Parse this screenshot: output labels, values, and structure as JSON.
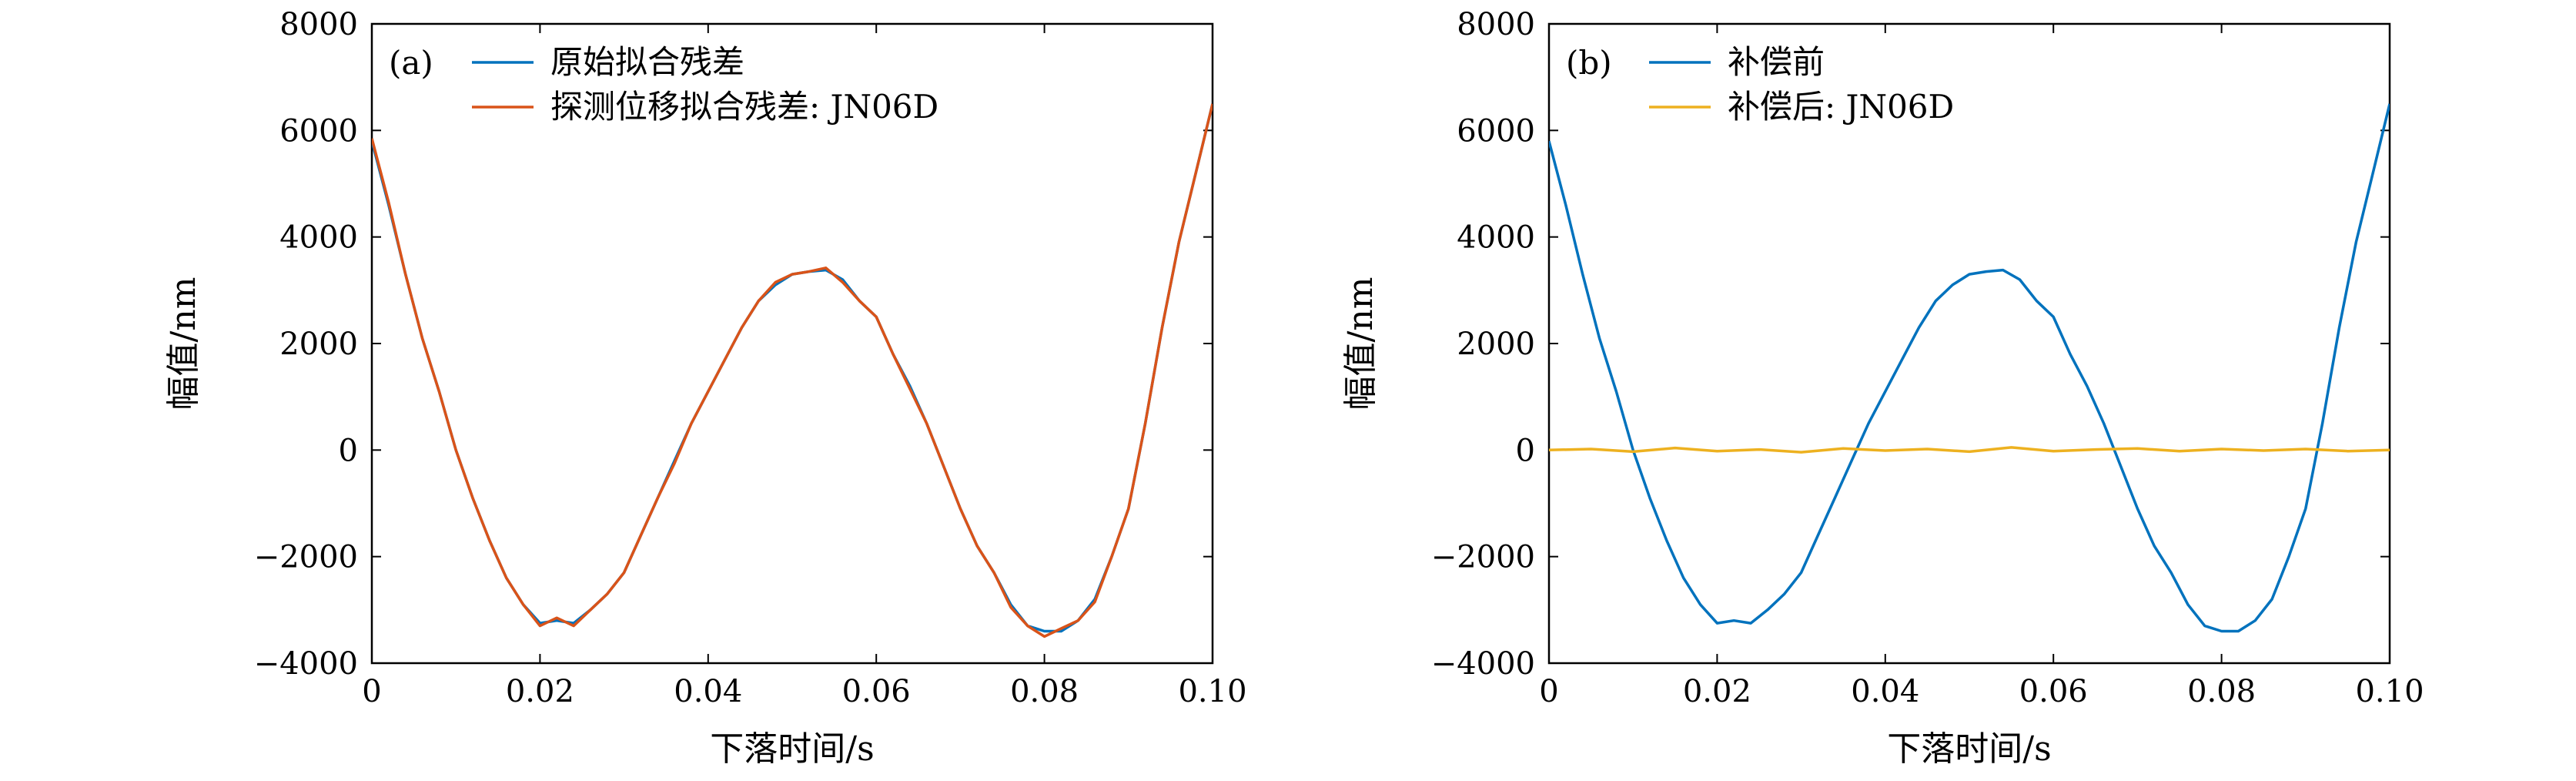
{
  "chart_data": [
    {
      "type": "line",
      "panel_label": "(a)",
      "xlabel": "下落时间/s",
      "ylabel": "幅值/nm",
      "xlim": [
        0,
        0.1
      ],
      "ylim": [
        -4000,
        8000
      ],
      "xticks": [
        0,
        0.02,
        0.04,
        0.06,
        0.08,
        0.1
      ],
      "xtick_labels": [
        "0",
        "0.02",
        "0.04",
        "0.06",
        "0.08",
        "0.10"
      ],
      "yticks": [
        -4000,
        -2000,
        0,
        2000,
        4000,
        6000,
        8000
      ],
      "ytick_labels": [
        "−4000",
        "−2000",
        "0",
        "2000",
        "4000",
        "6000",
        "8000"
      ],
      "legend_position": "top-left",
      "series": [
        {
          "name": "原始拟合残差",
          "color": "#0072BD",
          "x": [
            0,
            0.002,
            0.004,
            0.006,
            0.008,
            0.01,
            0.012,
            0.014,
            0.016,
            0.018,
            0.02,
            0.022,
            0.024,
            0.026,
            0.028,
            0.03,
            0.032,
            0.034,
            0.036,
            0.038,
            0.04,
            0.042,
            0.044,
            0.046,
            0.048,
            0.05,
            0.052,
            0.054,
            0.056,
            0.058,
            0.06,
            0.062,
            0.064,
            0.066,
            0.068,
            0.07,
            0.072,
            0.074,
            0.076,
            0.078,
            0.08,
            0.082,
            0.084,
            0.086,
            0.088,
            0.09,
            0.092,
            0.094,
            0.096,
            0.098,
            0.1
          ],
          "y": [
            5800,
            4600,
            3300,
            2100,
            1100,
            0,
            -900,
            -1700,
            -2400,
            -2900,
            -3250,
            -3200,
            -3250,
            -3000,
            -2700,
            -2300,
            -1600,
            -900,
            -200,
            500,
            1100,
            1700,
            2300,
            2800,
            3100,
            3300,
            3350,
            3380,
            3200,
            2800,
            2500,
            1800,
            1200,
            500,
            -300,
            -1100,
            -1800,
            -2300,
            -2900,
            -3300,
            -3400,
            -3400,
            -3200,
            -2800,
            -2000,
            -1100,
            500,
            2300,
            3900,
            5200,
            6500
          ]
        },
        {
          "name": "探测位移拟合残差: JN06D",
          "color": "#D95319",
          "x": [
            0,
            0.002,
            0.004,
            0.006,
            0.008,
            0.01,
            0.012,
            0.014,
            0.016,
            0.018,
            0.02,
            0.022,
            0.024,
            0.026,
            0.028,
            0.03,
            0.032,
            0.034,
            0.036,
            0.038,
            0.04,
            0.042,
            0.044,
            0.046,
            0.048,
            0.05,
            0.052,
            0.054,
            0.056,
            0.058,
            0.06,
            0.062,
            0.064,
            0.066,
            0.068,
            0.07,
            0.072,
            0.074,
            0.076,
            0.078,
            0.08,
            0.082,
            0.084,
            0.086,
            0.088,
            0.09,
            0.092,
            0.094,
            0.096,
            0.098,
            0.1
          ],
          "y": [
            5850,
            4650,
            3300,
            2100,
            1100,
            0,
            -900,
            -1700,
            -2400,
            -2900,
            -3300,
            -3150,
            -3300,
            -3000,
            -2700,
            -2300,
            -1600,
            -900,
            -250,
            500,
            1100,
            1700,
            2300,
            2800,
            3150,
            3300,
            3350,
            3420,
            3150,
            2800,
            2500,
            1800,
            1150,
            500,
            -300,
            -1100,
            -1800,
            -2300,
            -2950,
            -3300,
            -3500,
            -3350,
            -3200,
            -2850,
            -2000,
            -1100,
            500,
            2300,
            3900,
            5200,
            6500
          ]
        }
      ]
    },
    {
      "type": "line",
      "panel_label": "(b)",
      "xlabel": "下落时间/s",
      "ylabel": "幅值/nm",
      "xlim": [
        0,
        0.1
      ],
      "ylim": [
        -4000,
        8000
      ],
      "xticks": [
        0,
        0.02,
        0.04,
        0.06,
        0.08,
        0.1
      ],
      "xtick_labels": [
        "0",
        "0.02",
        "0.04",
        "0.06",
        "0.08",
        "0.10"
      ],
      "yticks": [
        -4000,
        -2000,
        0,
        2000,
        4000,
        6000,
        8000
      ],
      "ytick_labels": [
        "−4000",
        "−2000",
        "0",
        "2000",
        "4000",
        "6000",
        "8000"
      ],
      "legend_position": "top-left",
      "series": [
        {
          "name": "补偿前",
          "color": "#0072BD",
          "x": [
            0,
            0.002,
            0.004,
            0.006,
            0.008,
            0.01,
            0.012,
            0.014,
            0.016,
            0.018,
            0.02,
            0.022,
            0.024,
            0.026,
            0.028,
            0.03,
            0.032,
            0.034,
            0.036,
            0.038,
            0.04,
            0.042,
            0.044,
            0.046,
            0.048,
            0.05,
            0.052,
            0.054,
            0.056,
            0.058,
            0.06,
            0.062,
            0.064,
            0.066,
            0.068,
            0.07,
            0.072,
            0.074,
            0.076,
            0.078,
            0.08,
            0.082,
            0.084,
            0.086,
            0.088,
            0.09,
            0.092,
            0.094,
            0.096,
            0.098,
            0.1
          ],
          "y": [
            5800,
            4600,
            3300,
            2100,
            1100,
            0,
            -900,
            -1700,
            -2400,
            -2900,
            -3250,
            -3200,
            -3250,
            -3000,
            -2700,
            -2300,
            -1600,
            -900,
            -200,
            500,
            1100,
            1700,
            2300,
            2800,
            3100,
            3300,
            3350,
            3380,
            3200,
            2800,
            2500,
            1800,
            1200,
            500,
            -300,
            -1100,
            -1800,
            -2300,
            -2900,
            -3300,
            -3400,
            -3400,
            -3200,
            -2800,
            -2000,
            -1100,
            500,
            2300,
            3900,
            5200,
            6500
          ]
        },
        {
          "name": "补偿后: JN06D",
          "color": "#EDB120",
          "x": [
            0,
            0.005,
            0.01,
            0.015,
            0.02,
            0.025,
            0.03,
            0.035,
            0.04,
            0.045,
            0.05,
            0.055,
            0.06,
            0.065,
            0.07,
            0.075,
            0.08,
            0.085,
            0.09,
            0.095,
            0.1
          ],
          "y": [
            0,
            20,
            -30,
            40,
            -20,
            10,
            -40,
            30,
            -10,
            20,
            -30,
            50,
            -20,
            10,
            30,
            -20,
            20,
            -10,
            20,
            -20,
            0
          ]
        }
      ]
    }
  ]
}
